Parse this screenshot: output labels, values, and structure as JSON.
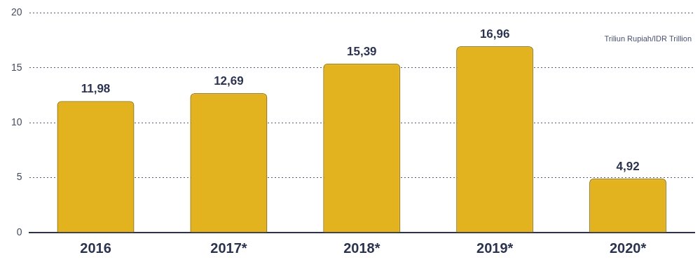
{
  "chart_data": {
    "type": "bar",
    "categories": [
      "2016",
      "2017*",
      "2018*",
      "2019*",
      "2020*"
    ],
    "values": [
      11.98,
      12.69,
      15.39,
      16.96,
      4.92
    ],
    "value_labels": [
      "11,98",
      "12,69",
      "15,39",
      "16,96",
      "4,92"
    ],
    "data_labels": true,
    "color": "#e3b21f",
    "ylim": [
      0,
      20
    ],
    "yticks": [
      0,
      5,
      10,
      15,
      20
    ],
    "grid": true,
    "annotations": [
      "Triliun Rupiah/IDR Trillion"
    ]
  }
}
